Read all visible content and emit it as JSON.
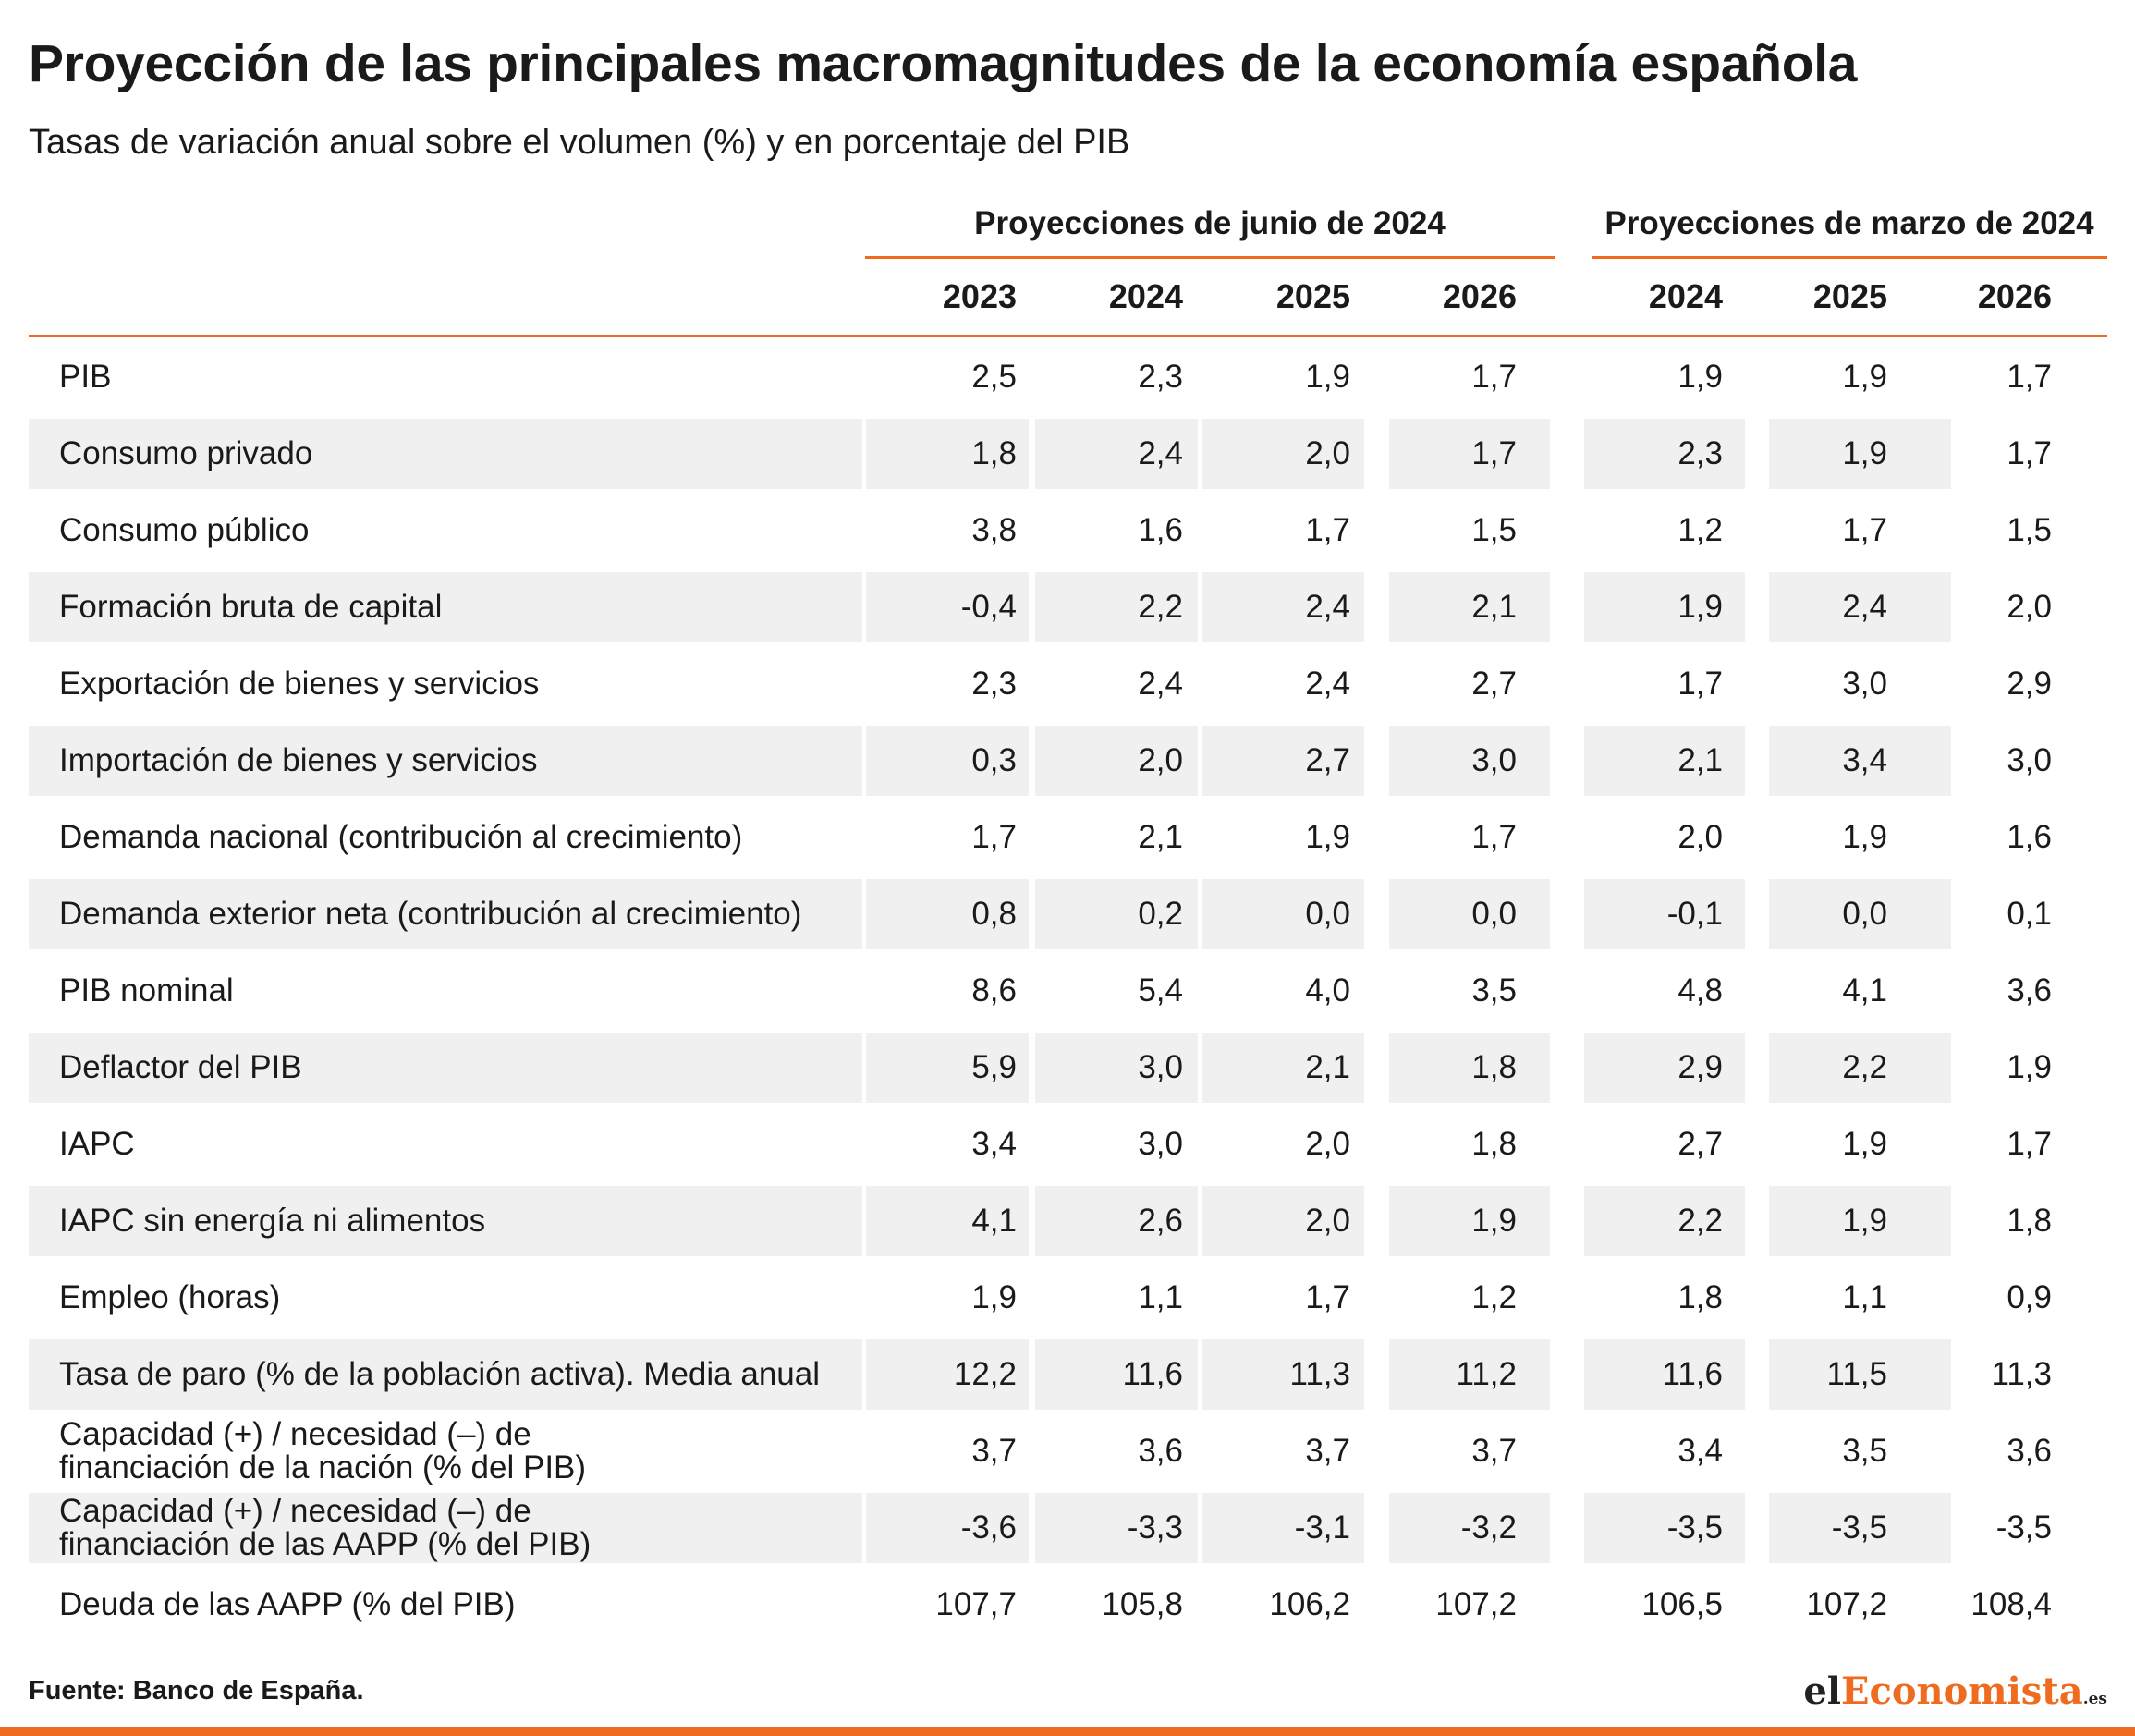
{
  "title": "Proyección de las principales macromagnitudes de la economía española",
  "subtitle": "Tasas de variación anual sobre el volumen (%) y en porcentaje del PIB",
  "groups": {
    "june": "Proyecciones de junio de 2024",
    "march": "Proyecciones de marzo de 2024"
  },
  "years": {
    "june": [
      "2023",
      "2024",
      "2025",
      "2026"
    ],
    "march": [
      "2024",
      "2025",
      "2026"
    ]
  },
  "rows": [
    {
      "label": "PIB",
      "values": [
        "2,5",
        "2,3",
        "1,9",
        "1,7",
        "1,9",
        "1,9",
        "1,7"
      ]
    },
    {
      "label": "Consumo privado",
      "values": [
        "1,8",
        "2,4",
        "2,0",
        "1,7",
        "2,3",
        "1,9",
        "1,7"
      ]
    },
    {
      "label": "Consumo público",
      "values": [
        "3,8",
        "1,6",
        "1,7",
        "1,5",
        "1,2",
        "1,7",
        "1,5"
      ]
    },
    {
      "label": "Formación bruta de capital",
      "values": [
        "-0,4",
        "2,2",
        "2,4",
        "2,1",
        "1,9",
        "2,4",
        "2,0"
      ]
    },
    {
      "label": "Exportación de bienes y servicios",
      "values": [
        "2,3",
        "2,4",
        "2,4",
        "2,7",
        "1,7",
        "3,0",
        "2,9"
      ]
    },
    {
      "label": "Importación de bienes y servicios",
      "values": [
        "0,3",
        "2,0",
        "2,7",
        "3,0",
        "2,1",
        "3,4",
        "3,0"
      ]
    },
    {
      "label": "Demanda nacional (contribución al crecimiento)",
      "values": [
        "1,7",
        "2,1",
        "1,9",
        "1,7",
        "2,0",
        "1,9",
        "1,6"
      ]
    },
    {
      "label": "Demanda exterior neta (contribución al crecimiento)",
      "values": [
        "0,8",
        "0,2",
        "0,0",
        "0,0",
        "-0,1",
        "0,0",
        "0,1"
      ]
    },
    {
      "label": "PIB nominal",
      "values": [
        "8,6",
        "5,4",
        "4,0",
        "3,5",
        "4,8",
        "4,1",
        "3,6"
      ]
    },
    {
      "label": "Deflactor del PIB",
      "values": [
        "5,9",
        "3,0",
        "2,1",
        "1,8",
        "2,9",
        "2,2",
        "1,9"
      ]
    },
    {
      "label": "IAPC",
      "values": [
        "3,4",
        "3,0",
        "2,0",
        "1,8",
        "2,7",
        "1,9",
        "1,7"
      ]
    },
    {
      "label": "IAPC sin energía ni alimentos",
      "values": [
        "4,1",
        "2,6",
        "2,0",
        "1,9",
        "2,2",
        "1,9",
        "1,8"
      ]
    },
    {
      "label": "Empleo (horas)",
      "values": [
        "1,9",
        "1,1",
        "1,7",
        "1,2",
        "1,8",
        "1,1",
        "0,9"
      ]
    },
    {
      "label": "Tasa de paro (% de la población activa). Media anual",
      "values": [
        "12,2",
        "11,6",
        "11,3",
        "11,2",
        "11,6",
        "11,5",
        "11,3"
      ]
    },
    {
      "label": "Capacidad (+) / necesidad (–) de\nfinanciación de la nación (% del PIB)",
      "values": [
        "3,7",
        "3,6",
        "3,7",
        "3,7",
        "3,4",
        "3,5",
        "3,6"
      ]
    },
    {
      "label": "Capacidad (+) / necesidad (–) de\nfinanciación de las AAPP (% del PIB)",
      "values": [
        "-3,6",
        "-3,3",
        "-3,1",
        "-3,2",
        "-3,5",
        "-3,5",
        "-3,5"
      ]
    },
    {
      "label": "Deuda de las AAPP (% del PIB)",
      "values": [
        "107,7",
        "105,8",
        "106,2",
        "107,2",
        "106,5",
        "107,2",
        "108,4"
      ]
    }
  ],
  "source": "Fuente: Banco de España.",
  "logo": {
    "part1": "el",
    "part2": "Economista",
    "tld": ".es"
  },
  "colors": {
    "accent": "#ee6b1f",
    "stripe": "#f0f0f0",
    "text": "#1a1a1a"
  }
}
